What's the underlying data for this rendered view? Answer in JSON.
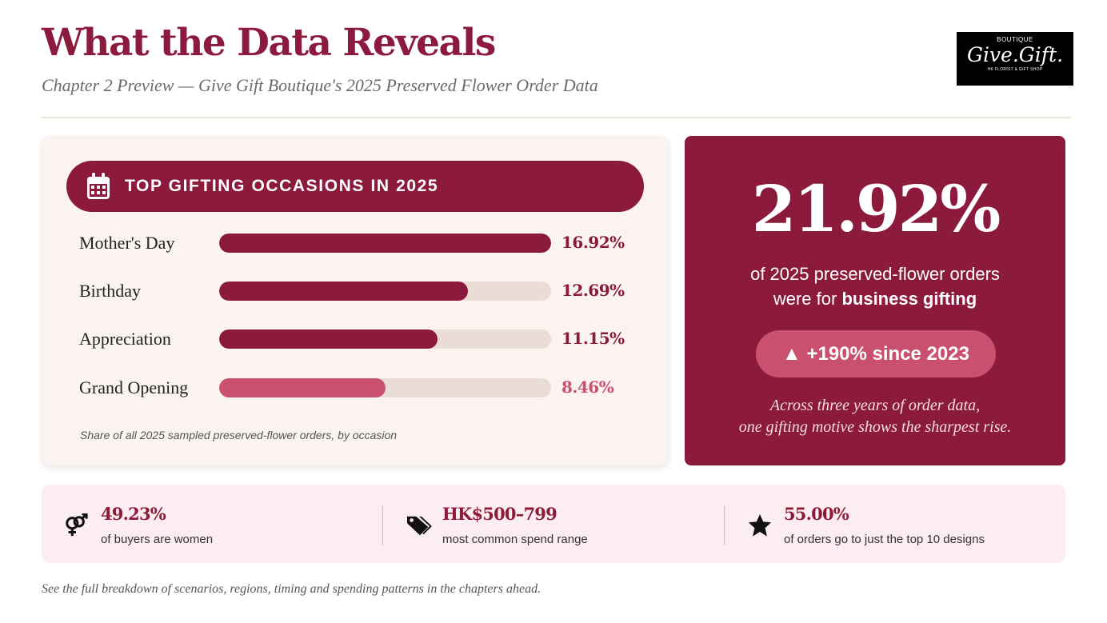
{
  "header": {
    "title": "What the Data Reveals",
    "subtitle": "Chapter 2 Preview — Give Gift Boutique's 2025 Preserved Flower Order Data"
  },
  "logo": {
    "top": "BOUTIQUE",
    "main": "Give.Gift.",
    "bottom": "HK FLORIST & GIFT SHOP"
  },
  "colors": {
    "primary": "#8c1a3c",
    "secondary": "#c9506e",
    "track": "#e9ddd5"
  },
  "chart_data": {
    "type": "bar",
    "orientation": "horizontal",
    "title": "TOP GIFTING OCCASIONS IN 2025",
    "categories": [
      "Mother's Day",
      "Birthday",
      "Appreciation",
      "Grand Opening"
    ],
    "values": [
      16.92,
      12.69,
      11.15,
      8.46
    ],
    "labels": [
      "16.92%",
      "12.69%",
      "11.15%",
      "8.46%"
    ],
    "xlim": [
      0,
      16.92
    ],
    "caption": "Share of all 2025 sampled preserved-flower orders, by occasion",
    "bar_colors": [
      "#8c1a3c",
      "#8c1a3c",
      "#8c1a3c",
      "#c9506e"
    ],
    "icon": "calendar-icon"
  },
  "highlight": {
    "value": "21.92%",
    "line1": "of 2025 preserved-flower orders",
    "line2_prefix": "were for ",
    "line2_bold": "business gifting",
    "badge": "▲ +190% since 2023",
    "note_line1": "Across three years of order data,",
    "note_line2": "one gifting motive shows the sharpest rise."
  },
  "stats": [
    {
      "icon": "gender-icon",
      "value": "49.23%",
      "label": "of buyers are women"
    },
    {
      "icon": "price-tag-icon",
      "value": "HK$500–799",
      "label": "most common spend range"
    },
    {
      "icon": "star-icon",
      "value": "55.00%",
      "label": "of orders go to just the top 10 designs"
    }
  ],
  "footer": "See the full breakdown of scenarios, regions, timing and spending patterns in the chapters ahead."
}
